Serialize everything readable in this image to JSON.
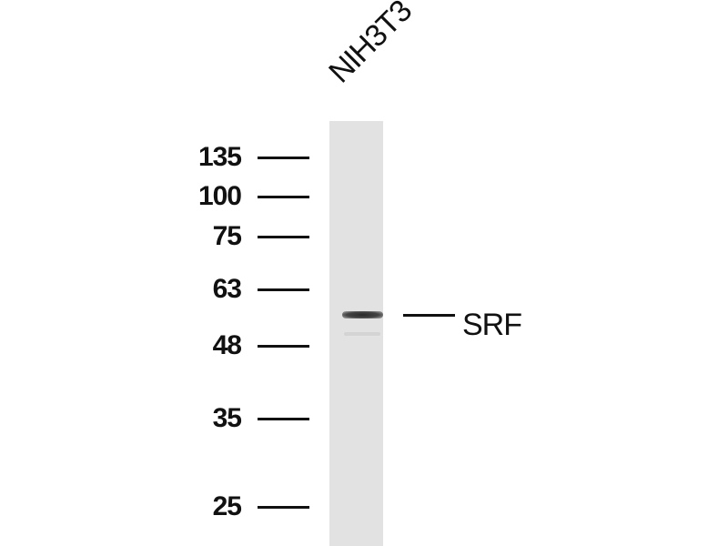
{
  "lane_labels": [
    "NIH3T3"
  ],
  "markers": [
    {
      "label": "135",
      "kda": 135
    },
    {
      "label": "100",
      "kda": 100
    },
    {
      "label": "75",
      "kda": 75
    },
    {
      "label": "63",
      "kda": 63
    },
    {
      "label": "48",
      "kda": 48
    },
    {
      "label": "35",
      "kda": 35
    },
    {
      "label": "25",
      "kda": 25
    }
  ],
  "target": {
    "label": "SRF"
  }
}
